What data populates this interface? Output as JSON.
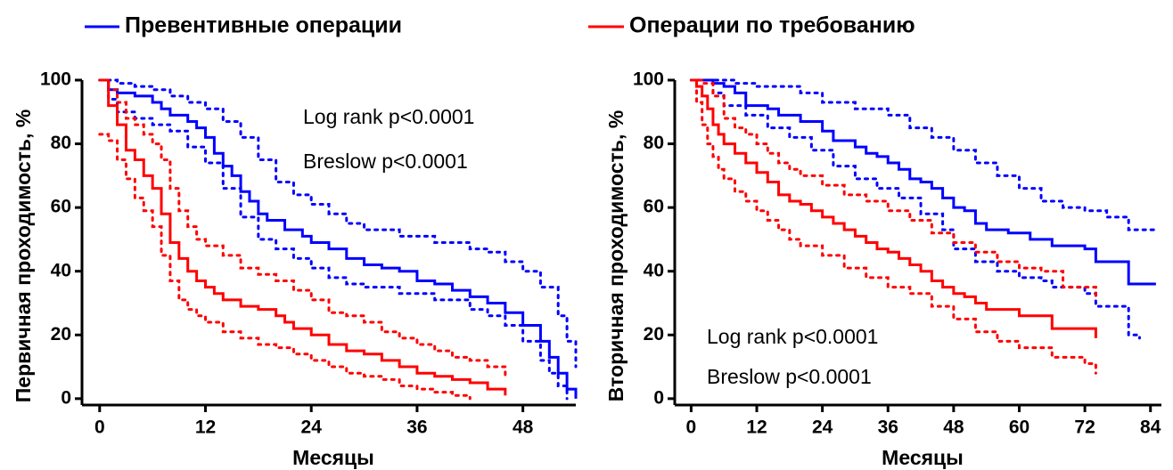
{
  "legend": [
    {
      "name": "Превентивные операции",
      "color": "#0000ff"
    },
    {
      "name": "Операции по требованию",
      "color": "#ff0000"
    }
  ],
  "chart_data": [
    {
      "type": "line",
      "step": true,
      "ylabel": "Первичная проходимость, %",
      "xlabel": "Месяцы",
      "xlim": [
        -2,
        54
      ],
      "ylim": [
        -2,
        100
      ],
      "xticks": [
        0,
        12,
        24,
        36,
        48
      ],
      "yticks": [
        0,
        20,
        40,
        60,
        80,
        100
      ],
      "annotations": [
        "Log rank p<0.0001",
        "Breslow p<0.0001"
      ],
      "series": [
        {
          "color": "#0000ff",
          "line_style": "solid",
          "x": [
            0,
            1,
            2,
            4,
            6,
            7,
            8,
            10,
            11,
            12,
            13,
            14,
            15,
            16,
            17,
            18,
            19,
            21,
            23,
            24,
            26,
            28,
            30,
            32,
            34,
            36,
            38,
            40,
            42,
            44,
            46,
            48,
            50,
            51,
            52,
            53,
            54
          ],
          "values": [
            100,
            97,
            96,
            95,
            93,
            91,
            89,
            87,
            85,
            82,
            77,
            73,
            70,
            65,
            62,
            58,
            56,
            53,
            51,
            49,
            47,
            44,
            42,
            41,
            40,
            37,
            36,
            34,
            32,
            30,
            27,
            23,
            18,
            13,
            8,
            3,
            0
          ]
        },
        {
          "color": "#0000ff",
          "line_style": "dotted",
          "x": [
            0,
            2,
            4,
            6,
            8,
            10,
            12,
            14,
            16,
            18,
            20,
            22,
            24,
            26,
            28,
            30,
            34,
            38,
            42,
            44,
            46,
            48,
            50,
            52,
            53,
            54
          ],
          "values": [
            100,
            99,
            98,
            97,
            95,
            93,
            91,
            87,
            82,
            75,
            68,
            64,
            61,
            58,
            55,
            53,
            51,
            49,
            47,
            46,
            43,
            40,
            35,
            26,
            18,
            10
          ]
        },
        {
          "color": "#0000ff",
          "line_style": "dotted",
          "x": [
            0,
            1,
            2,
            4,
            6,
            8,
            10,
            12,
            14,
            16,
            18,
            20,
            22,
            24,
            26,
            28,
            30,
            34,
            38,
            42,
            44,
            46,
            48,
            50,
            51,
            52,
            53
          ],
          "values": [
            100,
            94,
            90,
            88,
            86,
            84,
            79,
            74,
            66,
            57,
            50,
            47,
            44,
            41,
            38,
            36,
            35,
            33,
            31,
            28,
            26,
            23,
            18,
            12,
            8,
            4,
            0
          ]
        },
        {
          "color": "#ff0000",
          "line_style": "solid",
          "x": [
            0,
            1,
            2,
            3,
            4,
            5,
            6,
            7,
            8,
            9,
            10,
            11,
            12,
            13,
            14,
            16,
            18,
            20,
            21,
            22,
            24,
            26,
            28,
            30,
            32,
            34,
            36,
            38,
            40,
            42,
            44,
            46
          ],
          "values": [
            100,
            92,
            86,
            78,
            75,
            70,
            66,
            58,
            49,
            44,
            40,
            37,
            35,
            33,
            31,
            29,
            28,
            26,
            24,
            22,
            20,
            17,
            15,
            14,
            12,
            10,
            8,
            7,
            6,
            5,
            3,
            1
          ]
        },
        {
          "color": "#ff0000",
          "line_style": "dotted",
          "x": [
            0,
            1,
            2,
            3,
            4,
            5,
            6,
            7,
            8,
            9,
            10,
            11,
            12,
            14,
            16,
            18,
            20,
            22,
            24,
            26,
            28,
            30,
            32,
            34,
            36,
            38,
            40,
            42,
            44,
            46
          ],
          "values": [
            100,
            97,
            93,
            88,
            86,
            83,
            80,
            75,
            66,
            59,
            54,
            50,
            48,
            45,
            41,
            39,
            37,
            34,
            31,
            27,
            26,
            24,
            21,
            19,
            17,
            15,
            13,
            12,
            10,
            6
          ]
        },
        {
          "color": "#ff0000",
          "line_style": "dotted",
          "x": [
            0,
            1,
            2,
            3,
            4,
            5,
            6,
            7,
            8,
            9,
            10,
            11,
            12,
            14,
            16,
            18,
            20,
            22,
            24,
            26,
            28,
            30,
            32,
            34,
            36,
            38,
            40,
            42
          ],
          "values": [
            83,
            81,
            75,
            69,
            63,
            59,
            54,
            45,
            37,
            31,
            28,
            26,
            24,
            21,
            19,
            17,
            16,
            14,
            12,
            10,
            8,
            7,
            6,
            4,
            3,
            2,
            1,
            0
          ]
        }
      ]
    },
    {
      "type": "line",
      "step": true,
      "ylabel": "Вторичная проходимость, %",
      "xlabel": "Месяцы",
      "xlim": [
        -3,
        86
      ],
      "ylim": [
        -2,
        100
      ],
      "xticks": [
        0,
        12,
        24,
        36,
        48,
        60,
        72,
        84
      ],
      "yticks": [
        0,
        20,
        40,
        60,
        80,
        100
      ],
      "annotations": [
        "Log rank p<0.0001",
        "Breslow p<0.0001"
      ],
      "series": [
        {
          "color": "#0000ff",
          "line_style": "solid",
          "x": [
            0,
            4,
            6,
            8,
            10,
            14,
            16,
            20,
            24,
            26,
            30,
            32,
            34,
            36,
            38,
            40,
            42,
            44,
            46,
            48,
            50,
            52,
            54,
            58,
            62,
            66,
            72,
            74,
            80,
            85
          ],
          "values": [
            100,
            99,
            98,
            96,
            92,
            91,
            89,
            87,
            84,
            81,
            79,
            77,
            76,
            74,
            72,
            69,
            68,
            66,
            63,
            60,
            59,
            55,
            53,
            52,
            50,
            48,
            47,
            43,
            36,
            36
          ]
        },
        {
          "color": "#0000ff",
          "line_style": "dotted",
          "x": [
            0,
            8,
            12,
            20,
            24,
            30,
            36,
            40,
            44,
            48,
            52,
            56,
            60,
            64,
            68,
            72,
            76,
            80,
            85
          ],
          "values": [
            100,
            99,
            98,
            96,
            93,
            91,
            89,
            85,
            82,
            78,
            74,
            70,
            66,
            62,
            60,
            59,
            57,
            53,
            53
          ]
        },
        {
          "color": "#0000ff",
          "line_style": "dotted",
          "x": [
            0,
            4,
            6,
            10,
            14,
            18,
            22,
            26,
            30,
            34,
            38,
            42,
            46,
            48,
            52,
            56,
            60,
            64,
            66,
            72,
            74,
            80,
            82
          ],
          "values": [
            100,
            96,
            92,
            89,
            85,
            82,
            78,
            73,
            69,
            66,
            63,
            58,
            53,
            47,
            43,
            40,
            38,
            37,
            35,
            33,
            29,
            20,
            19
          ]
        },
        {
          "color": "#ff0000",
          "line_style": "solid",
          "x": [
            0,
            1,
            2,
            3,
            4,
            5,
            6,
            8,
            10,
            12,
            14,
            16,
            18,
            20,
            22,
            24,
            26,
            28,
            30,
            32,
            34,
            36,
            38,
            40,
            42,
            44,
            46,
            48,
            50,
            52,
            54,
            60,
            66,
            74
          ],
          "values": [
            100,
            98,
            95,
            91,
            86,
            83,
            80,
            77,
            74,
            71,
            68,
            64,
            62,
            61,
            59,
            57,
            55,
            53,
            51,
            49,
            47,
            46,
            44,
            42,
            40,
            37,
            35,
            33,
            32,
            30,
            28,
            26,
            22,
            19
          ]
        },
        {
          "color": "#ff0000",
          "line_style": "dotted",
          "x": [
            0,
            2,
            4,
            6,
            8,
            10,
            12,
            14,
            16,
            18,
            20,
            24,
            28,
            32,
            36,
            40,
            44,
            48,
            52,
            56,
            60,
            64,
            68,
            72,
            74
          ],
          "values": [
            100,
            99,
            95,
            88,
            85,
            83,
            80,
            77,
            74,
            72,
            70,
            67,
            64,
            62,
            59,
            56,
            52,
            49,
            46,
            43,
            41,
            40,
            35,
            35,
            32
          ]
        },
        {
          "color": "#ff0000",
          "line_style": "dotted",
          "x": [
            0,
            1,
            2,
            3,
            4,
            5,
            6,
            8,
            10,
            12,
            14,
            16,
            18,
            20,
            24,
            28,
            32,
            36,
            40,
            44,
            48,
            52,
            56,
            60,
            66,
            72,
            74
          ],
          "values": [
            100,
            93,
            86,
            80,
            76,
            72,
            69,
            65,
            62,
            59,
            56,
            53,
            50,
            48,
            45,
            41,
            38,
            35,
            33,
            29,
            25,
            21,
            18,
            16,
            13,
            11,
            8
          ]
        }
      ]
    }
  ]
}
